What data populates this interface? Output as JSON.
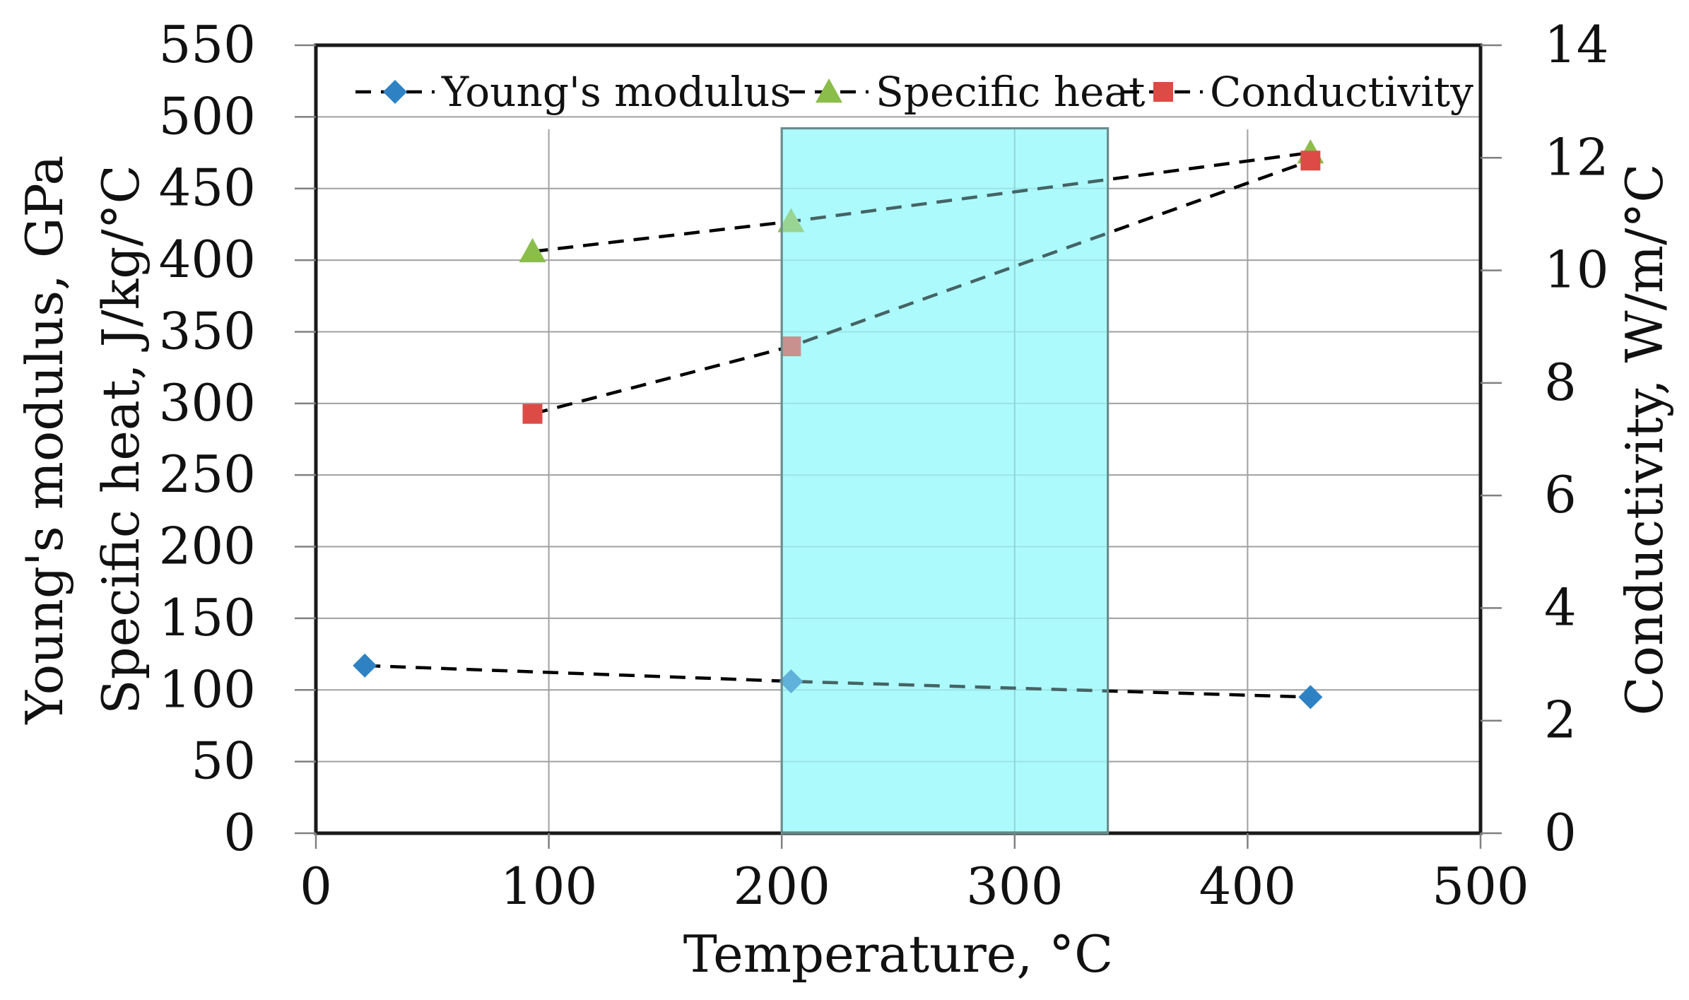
{
  "chart_data": {
    "type": "line",
    "x_axis": {
      "label": "Temperature, °C",
      "range": [
        0,
        500
      ],
      "ticks": [
        0,
        100,
        200,
        300,
        400,
        500
      ],
      "tick_labels": [
        "0",
        "100",
        "200",
        "300",
        "400",
        "500"
      ]
    },
    "y_left": {
      "label_line1": "Young's modulus, GPa",
      "label_line2": "Specific heat, J/kg/°C",
      "range": [
        0,
        550
      ],
      "ticks": [
        0,
        50,
        100,
        150,
        200,
        250,
        300,
        350,
        400,
        450,
        500,
        550
      ],
      "tick_labels": [
        "0",
        "50",
        "100",
        "150",
        "200",
        "250",
        "300",
        "350",
        "400",
        "450",
        "500",
        "550"
      ]
    },
    "y_right": {
      "label": "Conductivity, W/m/°C",
      "range": [
        0,
        14
      ],
      "ticks": [
        0,
        2,
        4,
        6,
        8,
        10,
        12,
        14
      ],
      "tick_labels": [
        "0",
        "2",
        "4",
        "6",
        "8",
        "10",
        "12",
        "14"
      ]
    },
    "highlight_region": {
      "x_start": 200,
      "x_end": 340,
      "y_top": 492,
      "color": "#adfafc"
    },
    "grid": true,
    "legend_position": "top",
    "series": [
      {
        "name": "Young's modulus",
        "axis": "left",
        "marker": "diamond",
        "color": "#2e82c4",
        "x": [
          21,
          204,
          427
        ],
        "y": [
          117,
          106,
          95
        ]
      },
      {
        "name": "Specific heat",
        "axis": "left",
        "marker": "triangle",
        "color": "#8bbd4b",
        "x": [
          93,
          204,
          427
        ],
        "y": [
          406,
          427,
          475
        ]
      },
      {
        "name": "Conductivity",
        "axis": "right",
        "marker": "square",
        "color": "#dc4b45",
        "x": [
          93,
          204,
          427
        ],
        "y": [
          7.45,
          8.65,
          11.95
        ]
      }
    ]
  }
}
